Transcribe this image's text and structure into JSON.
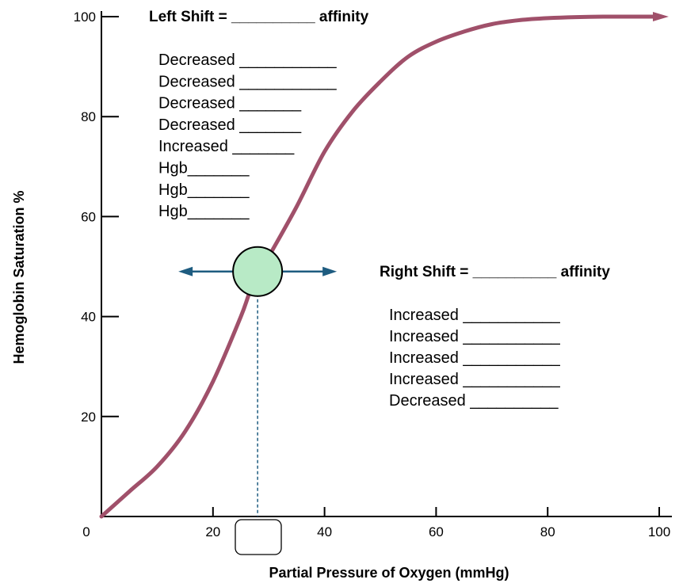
{
  "chart_data": {
    "type": "line",
    "title": "",
    "xlabel": "Partial Pressure of Oxygen (mmHg)",
    "ylabel": "Hemoglobin Saturation %",
    "xlim": [
      0,
      100
    ],
    "ylim": [
      0,
      100
    ],
    "x_ticks": [
      0,
      20,
      40,
      60,
      80,
      100
    ],
    "y_ticks": [
      20,
      40,
      60,
      80,
      100
    ],
    "x_tick_labels": [
      "0",
      "20",
      "40",
      "60",
      "80",
      "100"
    ],
    "y_tick_labels": [
      "20",
      "40",
      "60",
      "80",
      "100"
    ],
    "series": [
      {
        "x": [
          0,
          5,
          10,
          15,
          20,
          25,
          27,
          30,
          35,
          40,
          45,
          50,
          55,
          60,
          65,
          70,
          75,
          80,
          85,
          90,
          95,
          99
        ],
        "y": [
          0,
          5,
          10,
          17,
          27,
          40,
          46,
          52,
          62,
          73,
          81,
          87,
          92,
          95,
          97,
          98.5,
          99.3,
          99.7,
          99.9,
          100,
          100,
          100
        ]
      }
    ],
    "marker_point": {
      "x": 28,
      "y": 49
    },
    "curve_color": "#a0506a",
    "marker_fill": "#b8eac6",
    "arrow_color": "#1e5c80",
    "dash_color": "#1e5c80"
  },
  "left_shift": {
    "title": "Left Shift = __________ affinity",
    "items": [
      "Decreased ___________",
      "Decreased ___________",
      "Decreased _______",
      "Decreased _______",
      "Increased _______",
      "Hgb_______",
      "Hgb_______",
      "Hgb_______"
    ]
  },
  "right_shift": {
    "title": "Right Shift = __________ affinity",
    "items": [
      "Increased ___________",
      "Increased ___________",
      "Increased ___________",
      "Increased ___________",
      "Decreased __________"
    ]
  }
}
